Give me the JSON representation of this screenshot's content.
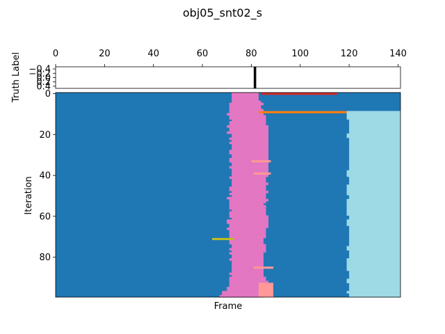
{
  "chart_data": [
    {
      "type": "heatmap",
      "title": "obj05_snt02_s",
      "panel": "truth",
      "ylabel": "Truth Label",
      "x_ticks": [
        0,
        20,
        40,
        60,
        80,
        100,
        120,
        140
      ],
      "x_tick_position": "top",
      "xlim": [
        0,
        141
      ],
      "y_ticks": [
        -0.4,
        -0.2,
        0.0,
        0.2,
        0.4
      ],
      "y_tick_labels": [
        "−0.4",
        "−0.2",
        "0.0",
        "0.2",
        "0.4"
      ],
      "ylim": [
        -0.5,
        0.5
      ],
      "truth_frames": [
        81
      ],
      "colors": {
        "background": "#ffffff",
        "marker": "#000000"
      }
    },
    {
      "type": "heatmap",
      "panel": "iterations",
      "xlabel": "Frame",
      "ylabel": "Iteration",
      "xlim": [
        0,
        141
      ],
      "ylim": [
        99,
        0
      ],
      "y_ticks": [
        0,
        20,
        40,
        60,
        80
      ],
      "colors": {
        "background": "#1f77b4",
        "pink": "#e377c2",
        "cyan": "#9edae5",
        "red": "#d62728",
        "orange": "#ff7f0e",
        "salmon": "#ff9896",
        "olive": "#bcbd22"
      },
      "pink_band": {
        "left": [
          72,
          72,
          72,
          72,
          72,
          71,
          71,
          71,
          71,
          71,
          70,
          71,
          71,
          72,
          71,
          71,
          70,
          71,
          71,
          70,
          72,
          72,
          71,
          72,
          71,
          72,
          72,
          72,
          71,
          71,
          72,
          72,
          71,
          71,
          72,
          72,
          71,
          72,
          72,
          72,
          72,
          71,
          72,
          72,
          72,
          72,
          71,
          71,
          72,
          71,
          72,
          70,
          71,
          71,
          71,
          71,
          71,
          72,
          71,
          71,
          71,
          72,
          70,
          70,
          71,
          71,
          70,
          71,
          71,
          71,
          71,
          72,
          71,
          71,
          72,
          72,
          71,
          72,
          71,
          72,
          72,
          71,
          72,
          72,
          72,
          72,
          72,
          72,
          71,
          72,
          71,
          71,
          71,
          71,
          71,
          70,
          70,
          68,
          68,
          67
        ],
        "right": [
          83,
          83,
          83,
          83,
          84,
          85,
          84,
          84,
          85,
          84,
          85,
          86,
          86,
          86,
          86,
          86,
          87,
          87,
          87,
          87,
          87,
          87,
          87,
          87,
          87,
          87,
          87,
          87,
          87,
          87,
          87,
          87,
          87,
          87,
          87,
          87,
          87,
          87,
          87,
          87,
          87,
          86,
          86,
          86,
          87,
          86,
          86,
          86,
          87,
          86,
          86,
          86,
          87,
          86,
          85,
          86,
          86,
          86,
          86,
          86,
          87,
          87,
          87,
          87,
          87,
          87,
          86,
          86,
          86,
          86,
          86,
          85,
          85,
          85,
          86,
          86,
          86,
          86,
          85,
          85,
          85,
          85,
          85,
          85,
          85,
          85,
          85,
          85,
          85,
          85,
          86,
          86,
          87,
          87,
          86,
          86,
          86,
          86,
          85,
          85
        ]
      },
      "cyan_region": {
        "start_row": 9,
        "left": [
          119,
          119,
          119,
          119,
          119,
          119,
          119,
          119,
          119,
          119,
          119,
          119,
          119,
          120,
          120,
          120,
          120,
          120,
          120,
          120,
          119,
          119,
          120,
          120,
          120,
          120,
          120,
          120,
          120,
          120,
          120,
          120,
          120,
          120,
          120,
          120,
          120,
          120,
          119,
          119,
          119,
          120,
          120,
          120,
          120,
          119,
          119,
          119,
          119,
          119,
          120,
          120,
          119,
          119,
          119,
          119,
          119,
          119,
          119,
          119,
          120,
          120,
          119,
          119,
          119,
          120,
          120,
          120,
          120,
          120,
          120,
          120,
          120,
          120,
          120,
          119,
          119,
          120,
          120,
          120,
          120,
          119,
          119,
          119,
          119,
          119,
          119,
          120,
          120,
          120,
          120,
          119,
          119,
          120,
          120,
          120,
          120,
          119,
          120,
          120
        ]
      },
      "segments": [
        {
          "row": 0,
          "start": 84,
          "end": 115,
          "color": "red"
        },
        {
          "row": 9,
          "start": 83,
          "end": 119,
          "color": "orange"
        },
        {
          "row": 33,
          "start": 80,
          "end": 88,
          "color": "salmon"
        },
        {
          "row": 39,
          "start": 81,
          "end": 88,
          "color": "salmon"
        },
        {
          "row": 71,
          "start": 64,
          "end": 73,
          "color": "olive"
        },
        {
          "row": 85,
          "start": 81,
          "end": 89,
          "color": "salmon"
        }
      ],
      "blocks": [
        {
          "row_start": 93,
          "row_end": 100,
          "start": 83,
          "end": 89,
          "color": "salmon"
        }
      ]
    }
  ]
}
